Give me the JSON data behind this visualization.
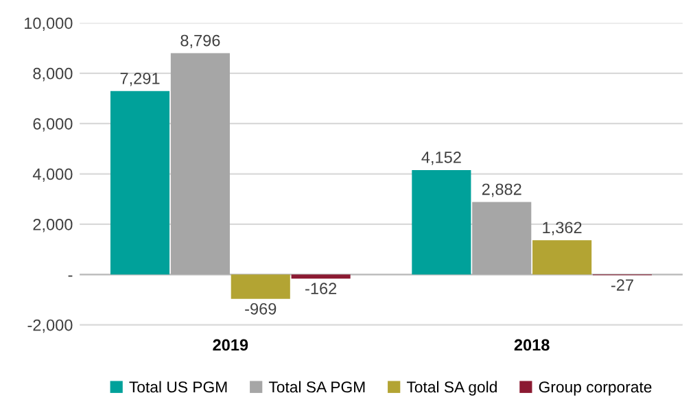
{
  "chart_data": {
    "type": "bar",
    "categories": [
      "2019",
      "2018"
    ],
    "series": [
      {
        "name": "Total US PGM",
        "color": "#00a19a",
        "values": [
          7291,
          4152
        ],
        "value_labels": [
          "7,291",
          "4,152"
        ]
      },
      {
        "name": "Total SA PGM",
        "color": "#a6a6a6",
        "values": [
          8796,
          2882
        ],
        "value_labels": [
          "8,796",
          "2,882"
        ]
      },
      {
        "name": "Total SA gold",
        "color": "#b3a433",
        "values": [
          -969,
          1362
        ],
        "value_labels": [
          "-969",
          "1,362"
        ]
      },
      {
        "name": "Group corporate",
        "color": "#8b1a32",
        "values": [
          -162,
          -27
        ],
        "value_labels": [
          "-162",
          "-27"
        ]
      }
    ],
    "ylim": [
      -2100,
      10000
    ],
    "yticks": [
      {
        "value": -2000,
        "label": "-2,000"
      },
      {
        "value": 0,
        "label": "-"
      },
      {
        "value": 2000,
        "label": "2,000"
      },
      {
        "value": 4000,
        "label": "4,000"
      },
      {
        "value": 6000,
        "label": "6,000"
      },
      {
        "value": 8000,
        "label": "8,000"
      },
      {
        "value": 10000,
        "label": "10,000"
      }
    ],
    "grid": "y",
    "legend": "bottom"
  }
}
